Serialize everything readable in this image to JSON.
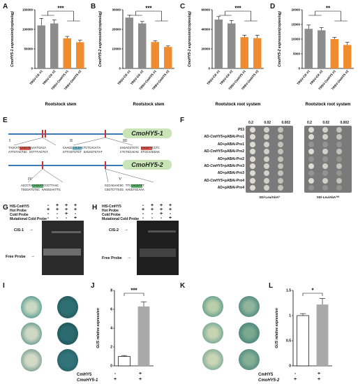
{
  "panels": {
    "A": "A",
    "B": "B",
    "C": "C",
    "D": "D",
    "E": "E",
    "F": "F",
    "G": "G",
    "H": "H",
    "I": "I",
    "J": "J",
    "K": "K",
    "L": "L"
  },
  "chart_data": [
    {
      "id": "A",
      "type": "bar",
      "ylabel": "CmoHY5-1 expression(copies/ug)",
      "xlabel": "Rootstock stem",
      "categories": [
        "TRSV-CK #1",
        "TRSV-CK #2",
        "TRSV-CmHY5 #1",
        "TRSV-CmHY5 #2"
      ],
      "values": [
        110000,
        115000,
        77000,
        67000
      ],
      "errors": [
        18000,
        9000,
        5000,
        5000
      ],
      "colors": [
        "#8c8c8c",
        "#8c8c8c",
        "#f08c2e",
        "#f08c2e"
      ],
      "sig": "***",
      "ylim": [
        0,
        150000
      ],
      "yticks": [
        0,
        50000,
        100000,
        150000
      ]
    },
    {
      "id": "B",
      "type": "bar",
      "ylabel": "CmoHY5-2 expression(copies/ug)",
      "xlabel": "Rootstock stem",
      "categories": [
        "TRSV-CK #1",
        "TRSV-CK #2",
        "TRSV-CmHY5 #1",
        "TRSV-CmHY5 #2"
      ],
      "values": [
        26000,
        23000,
        13500,
        11000
      ],
      "errors": [
        1200,
        1000,
        700,
        500
      ],
      "colors": [
        "#8c8c8c",
        "#8c8c8c",
        "#f08c2e",
        "#f08c2e"
      ],
      "sig": "***",
      "ylim": [
        0,
        30000
      ],
      "yticks": [
        0,
        10000,
        20000,
        30000
      ]
    },
    {
      "id": "C",
      "type": "bar",
      "ylabel": "CmoHY5-1 expression(copies/ug)",
      "xlabel": "Rootstock root system",
      "categories": [
        "TRSV-CK #1",
        "TRSV-CK #2",
        "TRSV-CmHY5 #1",
        "TRSV-CmHY5 #2"
      ],
      "values": [
        50000,
        46000,
        32000,
        31000
      ],
      "errors": [
        3000,
        3000,
        2000,
        3000
      ],
      "colors": [
        "#8c8c8c",
        "#8c8c8c",
        "#f08c2e",
        "#f08c2e"
      ],
      "sig": "***",
      "ylim": [
        0,
        60000
      ],
      "yticks": [
        0,
        20000,
        40000,
        60000
      ]
    },
    {
      "id": "D",
      "type": "bar",
      "ylabel": "CmoHY5-2 expression(copies/ug)",
      "xlabel": "Rootstock root system",
      "categories": [
        "TRSV-CK #1",
        "TRSV-CK #2",
        "TRSV-CmHY5 #1",
        "TRSV-CmHY5 #2"
      ],
      "values": [
        13500,
        13000,
        10000,
        8000
      ],
      "errors": [
        1300,
        900,
        600,
        900
      ],
      "colors": [
        "#8c8c8c",
        "#8c8c8c",
        "#f08c2e",
        "#f08c2e"
      ],
      "sig": "**",
      "ylim": [
        0,
        20000
      ],
      "yticks": [
        0,
        5000,
        10000,
        15000,
        20000
      ]
    },
    {
      "id": "J",
      "type": "bar",
      "ylabel": "GUS relative expression",
      "xlabel": "",
      "categories": [
        "- / +",
        "+ / +"
      ],
      "values": [
        1.0,
        6.3
      ],
      "errors": [
        0.1,
        0.5
      ],
      "colors": [
        "#ffffff",
        "#a9a9a9"
      ],
      "sig": "***",
      "ylim": [
        0,
        8
      ],
      "yticks": [
        0,
        2,
        4,
        6,
        8
      ]
    },
    {
      "id": "L",
      "type": "bar",
      "ylabel": "GUS relative expression",
      "xlabel": "",
      "categories": [
        "- / +",
        "+ / +"
      ],
      "values": [
        1.0,
        1.22
      ],
      "errors": [
        0.04,
        0.12
      ],
      "colors": [
        "#ffffff",
        "#a9a9a9"
      ],
      "sig": "*",
      "ylim": [
        0,
        1.5
      ],
      "yticks": [
        0.0,
        0.5,
        1.0,
        1.5
      ]
    }
  ],
  "panel_e": {
    "gene1": "CmoHY5-1",
    "gene2": "CmoHY5-2",
    "roman": [
      "I",
      "II",
      "III",
      "IV",
      "V"
    ],
    "seq_I_a": "TAACAT",
    "seq_I_hl": "CACGTG",
    "seq_I_b": "AAATGACA",
    "seq_I_c": "ATTGTAGTGC AATTTACTGT",
    "seq_II_a": "CAAGC",
    "seq_II_hl": "CACGA",
    "seq_II_b": "CTCTCACATA",
    "seq_II_c": "GTTCGTGTCT GAGAGTGTAT",
    "seq_III_a": "GAGACGTGTC ",
    "seq_III_hl": "CACGTT",
    "seq_III_b": "CCTC",
    "seq_III_c": "CTCTGCACAG GTGCAAGGAG",
    "seq_IV_a": "ACCCTA",
    "seq_IV_hl": "CACGTT",
    "seq_IV_b": "CCCTTAAC",
    "seq_IV_c": "TGGGATGTGC AAGGGAATTG",
    "seq_V_a": "GCCAGAACGC TTC",
    "seq_V_hl": "CACGTT",
    "seq_V_b": "T",
    "seq_V_c": "CGGTCTTGCG AAGGTGCAAA"
  },
  "panel_f": {
    "dilutions": [
      "0.2",
      "0.02",
      "0.002"
    ],
    "rows": [
      {
        "pre": "P53",
        "gene": "",
        "post": ""
      },
      {
        "pre": "AD-",
        "gene": "CmHY5",
        "post": "+pABAi-Pro1"
      },
      {
        "pre": "AD+pABAi-Pro1",
        "gene": "",
        "post": ""
      },
      {
        "pre": "AD-",
        "gene": "CmHY5",
        "post": "+pABAi-Pro2"
      },
      {
        "pre": "AD+pABAi-Pro2",
        "gene": "",
        "post": ""
      },
      {
        "pre": "AD-",
        "gene": "CmHY5",
        "post": "+pABAi-Pro3"
      },
      {
        "pre": "AD+pABAi-Pro3",
        "gene": "",
        "post": ""
      },
      {
        "pre": "AD-",
        "gene": "CmHY5",
        "post": "+pABAi-Pro4"
      },
      {
        "pre": "AD+pABAi-Pro4",
        "gene": "",
        "post": ""
      }
    ],
    "cap1": "SD/-Leu/AbA⁰",
    "cap2": "SD/-Leu/AbA³⁰⁰"
  },
  "panel_g": {
    "rows": [
      "HIS-CmHY5",
      "Hot Probe",
      "Cold Probe",
      "Mutational Cold Probe"
    ],
    "signs": [
      [
        "-",
        "+",
        "+",
        "+"
      ],
      [
        "+",
        "+",
        "+",
        "+"
      ],
      [
        "-",
        "-",
        "+",
        "-"
      ],
      [
        "-",
        "-",
        "-",
        "+"
      ]
    ],
    "cis": "CIS-1",
    "free": "Free Probe"
  },
  "panel_h": {
    "rows": [
      "HIS-CmHY5",
      "Hot Probe",
      "Cold Probe",
      "Mutational Cold Probe"
    ],
    "signs": [
      [
        "-",
        "+",
        "+",
        "+"
      ],
      [
        "+",
        "+",
        "+",
        "+"
      ],
      [
        "-",
        "-",
        "+",
        "-"
      ],
      [
        "-",
        "-",
        "-",
        "+"
      ]
    ],
    "cis": "CIS-2",
    "free": "Free Probe"
  },
  "panel_ij": {
    "row1": "CmHY5",
    "row2": "CmoHY5-1",
    "signs1": [
      "-",
      "+"
    ],
    "signs2": [
      "+",
      "+"
    ]
  },
  "panel_kl": {
    "row1": "CmHY5",
    "row2": "CmoHY5-2",
    "signs1": [
      "-",
      "+"
    ],
    "signs2": [
      "+",
      "+"
    ]
  }
}
